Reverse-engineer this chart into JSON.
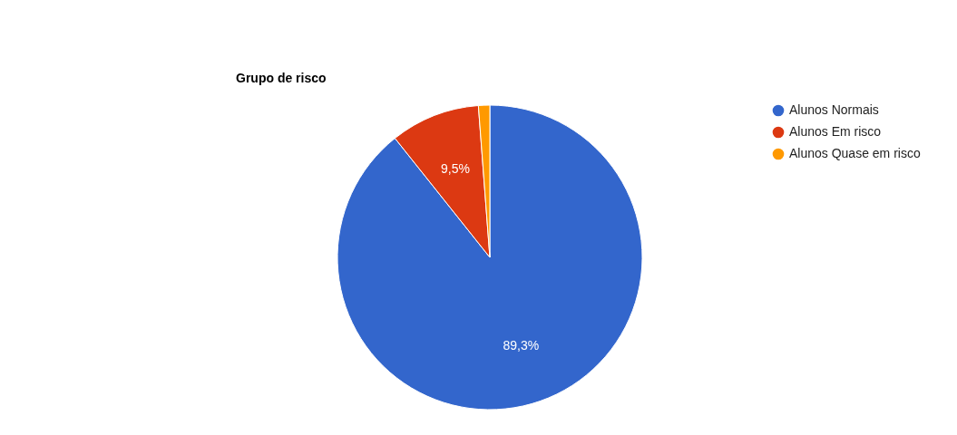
{
  "chart_data": {
    "type": "pie",
    "title": "Grupo de risco",
    "categories": [
      "Alunos Normais",
      "Alunos Em risco",
      "Alunos Quase em risco"
    ],
    "values": [
      89.3,
      9.5,
      1.2
    ],
    "colors": [
      "#3366cc",
      "#dc3912",
      "#ff9900"
    ],
    "value_labels": [
      "89,3%",
      "9,5%",
      null
    ],
    "legend": "right"
  }
}
